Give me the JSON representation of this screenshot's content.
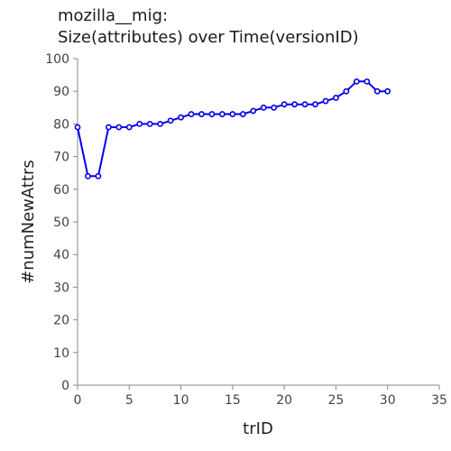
{
  "chart_data": {
    "type": "line",
    "title_line1": "mozilla__mig:",
    "title_line2": "Size(attributes) over Time(versionID)",
    "xlabel": "trID",
    "ylabel": "#numNewAttrs",
    "xlim": [
      0,
      35
    ],
    "ylim": [
      0,
      100
    ],
    "x_ticks": [
      0,
      5,
      10,
      15,
      20,
      25,
      30,
      35
    ],
    "y_ticks": [
      0,
      10,
      20,
      30,
      40,
      50,
      60,
      70,
      80,
      90,
      100
    ],
    "grid": false,
    "series": [
      {
        "color": "#0000ee",
        "x": [
          0,
          1,
          2,
          3,
          4,
          5,
          6,
          7,
          8,
          9,
          10,
          11,
          12,
          13,
          14,
          15,
          16,
          17,
          18,
          19,
          20,
          21,
          22,
          23,
          24,
          25,
          26,
          27,
          28,
          29,
          30
        ],
        "y": [
          79,
          64,
          64,
          79,
          79,
          79,
          80,
          80,
          80,
          81,
          82,
          83,
          83,
          83,
          83,
          83,
          83,
          84,
          85,
          85,
          86,
          86,
          86,
          86,
          87,
          88,
          90,
          93,
          93,
          90,
          90
        ]
      }
    ]
  }
}
